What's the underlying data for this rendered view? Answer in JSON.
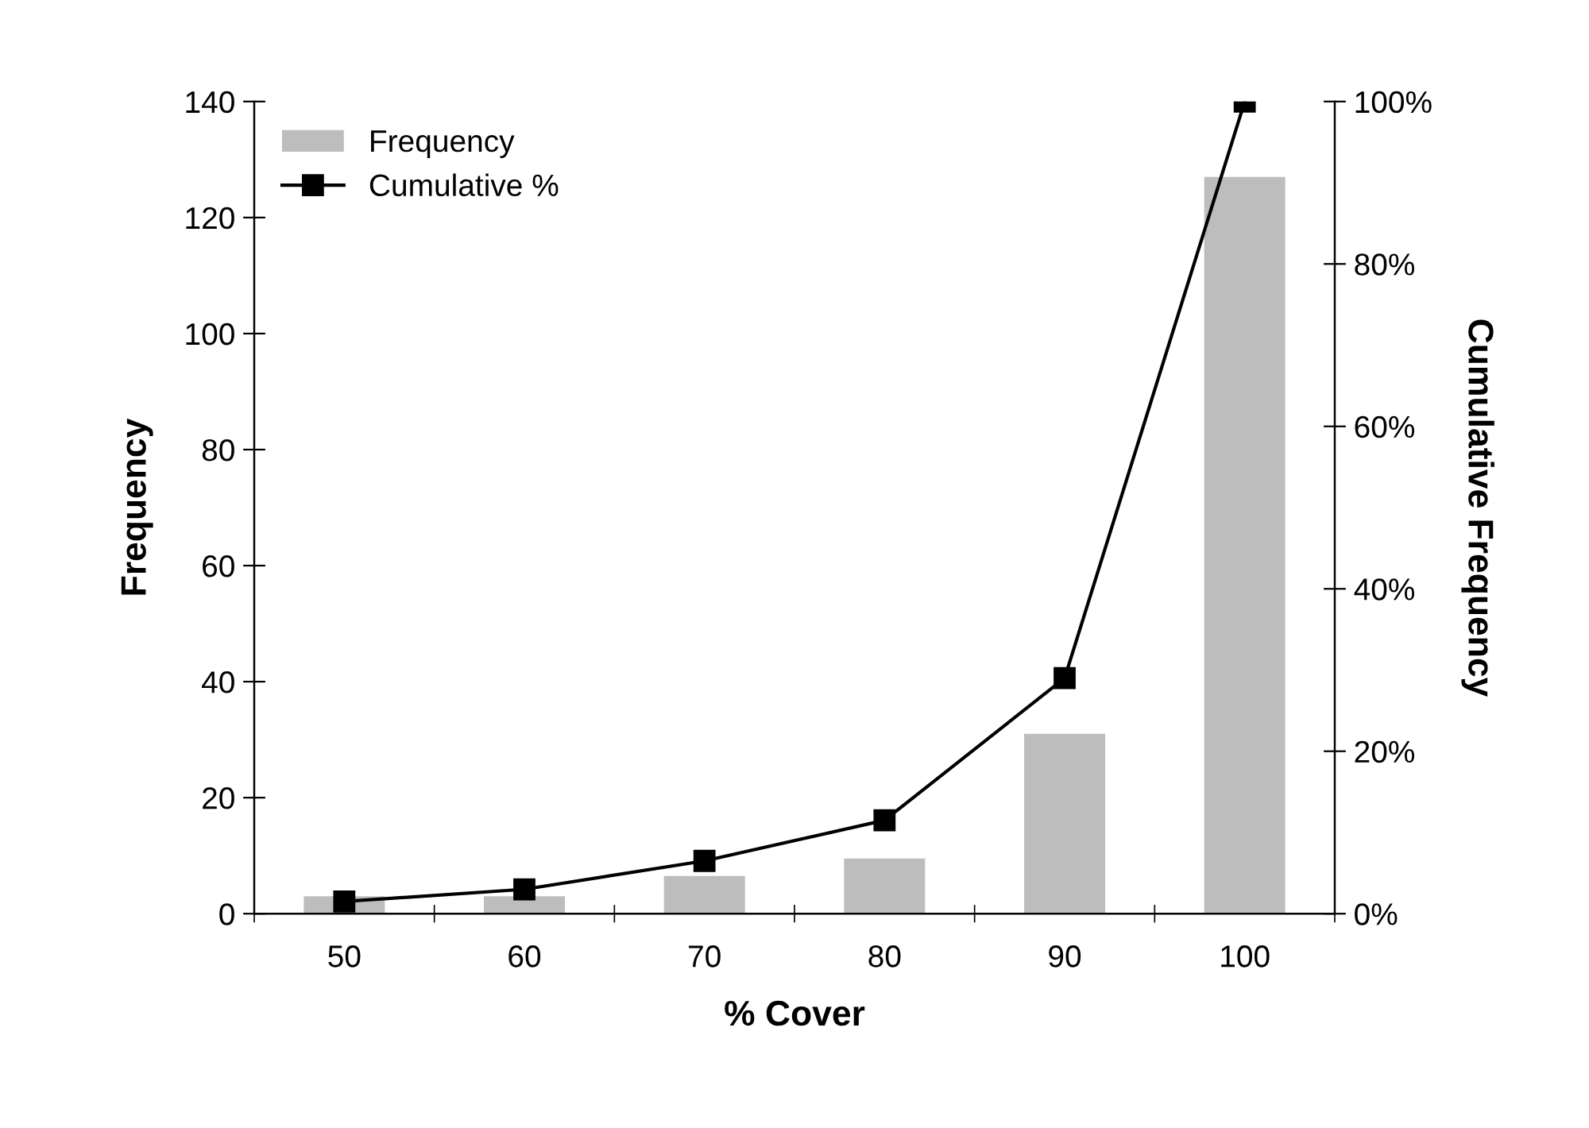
{
  "chart_data": {
    "type": "bar",
    "xlabel": "% Cover",
    "ylabel": "Frequency",
    "y2label": "Cumulative Frequency",
    "categories": [
      "50",
      "60",
      "70",
      "80",
      "90",
      "100"
    ],
    "series": [
      {
        "name": "Frequency",
        "color": "#bdbdbd",
        "values": [
          3,
          3,
          6.5,
          9.5,
          31,
          127
        ]
      },
      {
        "name": "Cumulative %",
        "type": "line",
        "axis": "y2",
        "color": "#000000",
        "marker": "square",
        "values": [
          1.5,
          3,
          6.5,
          11.5,
          29,
          100
        ]
      }
    ],
    "ylim": [
      0,
      140
    ],
    "yticks": [
      0,
      20,
      40,
      60,
      80,
      100,
      120,
      140
    ],
    "y2lim": [
      0,
      100
    ],
    "y2ticks": [
      {
        "value": 0,
        "label": "0%"
      },
      {
        "value": 20,
        "label": "20%"
      },
      {
        "value": 40,
        "label": "40%"
      },
      {
        "value": 60,
        "label": "60%"
      },
      {
        "value": 80,
        "label": "80%"
      },
      {
        "value": 100,
        "label": "100%"
      }
    ],
    "grid": false,
    "legend": "top left"
  }
}
